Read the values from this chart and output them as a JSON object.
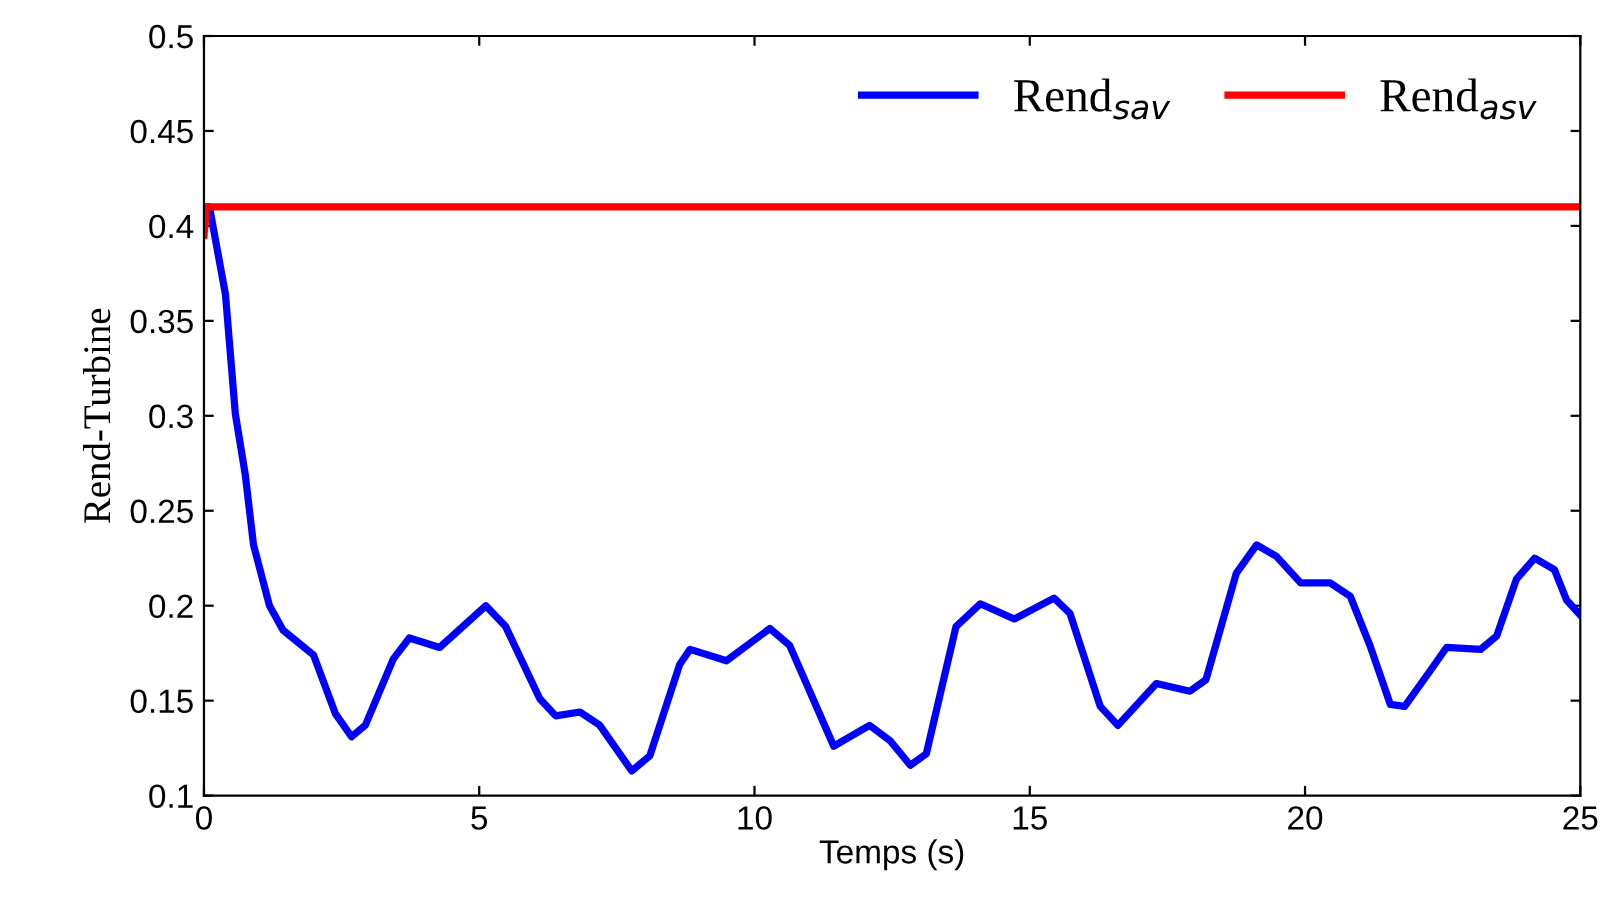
{
  "chart_data": {
    "type": "line",
    "xlabel": "Temps (s)",
    "ylabel": "Rend-Turbine",
    "xlim": [
      0,
      25
    ],
    "ylim": [
      0.1,
      0.5
    ],
    "xticks": [
      0,
      5,
      10,
      15,
      20,
      25
    ],
    "yticks": [
      0.1,
      0.15,
      0.2,
      0.25,
      0.3,
      0.35,
      0.4,
      0.45,
      0.5
    ],
    "grid": false,
    "legend": "top right",
    "marker": "none",
    "line_style": "solid",
    "series": [
      {
        "name": "Rend$_{sav}$",
        "color": "#0000ff",
        "x": [
          0,
          0.1,
          0.39,
          0.57,
          0.75,
          0.9,
          1.19,
          1.44,
          1.99,
          2.39,
          2.68,
          2.93,
          3.44,
          3.73,
          4.28,
          5.12,
          5.48,
          6.1,
          6.39,
          6.83,
          7.19,
          7.77,
          8.1,
          8.64,
          8.83,
          9.49,
          10.28,
          10.64,
          11.44,
          12.09,
          12.46,
          12.83,
          13.12,
          13.66,
          14.1,
          14.72,
          15.44,
          15.73,
          16.28,
          16.6,
          17.3,
          17.91,
          18.2,
          18.75,
          19.12,
          19.48,
          19.92,
          20.46,
          20.82,
          21.18,
          21.55,
          21.81,
          22.28,
          22.57,
          23.19,
          23.48,
          23.84,
          24.17,
          24.53,
          24.75,
          25
        ],
        "values": [
          0.41,
          0.41,
          0.364,
          0.301,
          0.269,
          0.232,
          0.2,
          0.187,
          0.174,
          0.143,
          0.131,
          0.137,
          0.172,
          0.183,
          0.178,
          0.2,
          0.189,
          0.151,
          0.142,
          0.144,
          0.137,
          0.113,
          0.121,
          0.169,
          0.177,
          0.171,
          0.188,
          0.179,
          0.126,
          0.137,
          0.129,
          0.116,
          0.122,
          0.189,
          0.201,
          0.193,
          0.204,
          0.196,
          0.147,
          0.137,
          0.159,
          0.155,
          0.161,
          0.217,
          0.232,
          0.226,
          0.212,
          0.212,
          0.205,
          0.179,
          0.148,
          0.147,
          0.166,
          0.178,
          0.177,
          0.184,
          0.214,
          0.225,
          0.219,
          0.203,
          0.195
        ]
      },
      {
        "name": "Rend$_{asv}$",
        "color": "#ff0000",
        "x": [
          0,
          0.05,
          0.3,
          25
        ],
        "values": [
          0.395,
          0.41,
          0.41,
          0.41
        ]
      }
    ]
  }
}
